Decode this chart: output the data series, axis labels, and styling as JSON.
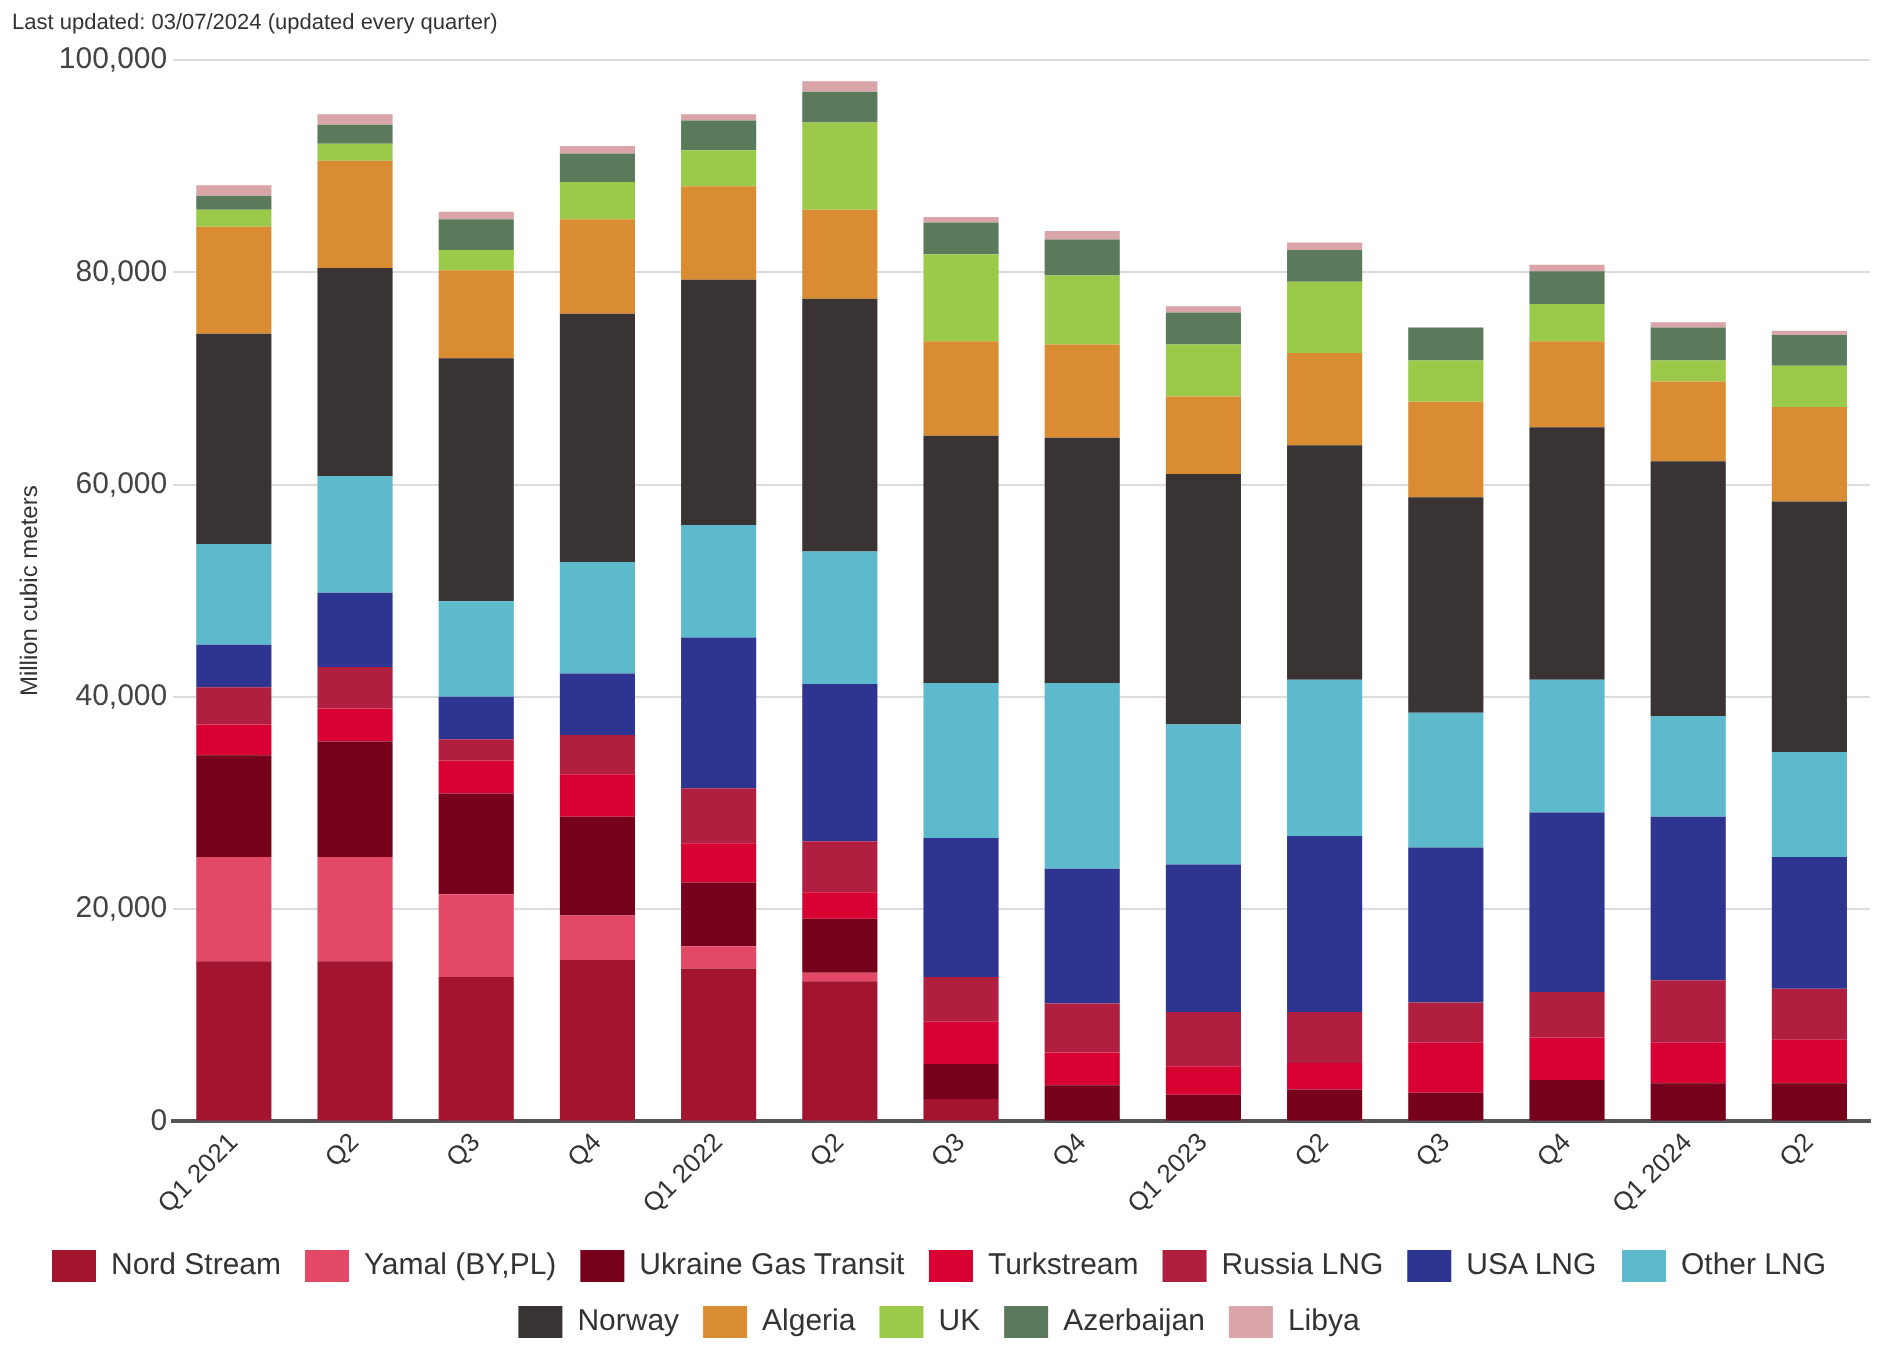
{
  "chart_data": {
    "type": "bar",
    "stacked": true,
    "ylabel": "Million cubic meters",
    "annotations": [
      "Last updated: 03/07/2024 (updated every quarter)"
    ],
    "categories": [
      "Q1 2021",
      "Q2",
      "Q3",
      "Q4",
      "Q1 2022",
      "Q2",
      "Q3",
      "Q4",
      "Q1 2023",
      "Q2",
      "Q3",
      "Q4",
      "Q1 2024",
      "Q2"
    ],
    "ylim": [
      0,
      100000
    ],
    "yticks": [
      0,
      {
        "value": 20000,
        "label": "20,000"
      },
      {
        "value": 40000,
        "label": "40,000"
      },
      {
        "value": 60000,
        "label": "60,000"
      },
      {
        "value": 80000,
        "label": "80,000"
      },
      {
        "value": 100000,
        "label": "100,000"
      }
    ],
    "grid": "y",
    "legend": "bottom",
    "series": [
      {
        "name": "Nord Stream",
        "color": "#a3152f",
        "values": [
          15100,
          15100,
          13600,
          15200,
          14400,
          13200,
          2100,
          0,
          0,
          0,
          0,
          0,
          0,
          0
        ]
      },
      {
        "name": "Yamal (BY,PL)",
        "color": "#e34866",
        "values": [
          9800,
          9800,
          7800,
          4200,
          2100,
          800,
          0,
          0,
          0,
          0,
          0,
          0,
          0,
          0
        ]
      },
      {
        "name": "Ukraine Gas Transit",
        "color": "#76001b",
        "values": [
          9600,
          10900,
          9500,
          9300,
          6000,
          5100,
          3300,
          3400,
          2500,
          3000,
          2700,
          3900,
          3600,
          3600
        ]
      },
      {
        "name": "Turkstream",
        "color": "#d80032",
        "values": [
          2900,
          3100,
          3100,
          4000,
          3700,
          2500,
          4000,
          3100,
          2700,
          2500,
          4700,
          4000,
          3800,
          4100
        ]
      },
      {
        "name": "Russia LNG",
        "color": "#b01e40",
        "values": [
          3500,
          3900,
          2000,
          3700,
          5200,
          4800,
          4200,
          4600,
          5100,
          4800,
          3800,
          4300,
          5900,
          4800
        ]
      },
      {
        "name": "USA LNG",
        "color": "#2e3590",
        "values": [
          4000,
          7000,
          4000,
          5800,
          14200,
          14800,
          13100,
          12700,
          13900,
          16600,
          14600,
          16900,
          15400,
          12400
        ]
      },
      {
        "name": "Other LNG",
        "color": "#5dbacd",
        "values": [
          9500,
          11000,
          9000,
          10500,
          10600,
          12500,
          14600,
          17500,
          13200,
          14700,
          12700,
          12500,
          9500,
          9900
        ]
      },
      {
        "name": "Norway",
        "color": "#393333",
        "values": [
          19800,
          19600,
          22900,
          23400,
          23100,
          23800,
          23300,
          23100,
          23600,
          22100,
          20300,
          23800,
          24000,
          23600
        ]
      },
      {
        "name": "Algeria",
        "color": "#da8c32",
        "values": [
          10100,
          10100,
          8300,
          8900,
          8800,
          8400,
          8900,
          8800,
          7300,
          8700,
          9000,
          8100,
          7500,
          8900
        ]
      },
      {
        "name": "UK",
        "color": "#9bca4a",
        "values": [
          1600,
          1600,
          1900,
          3500,
          3400,
          8200,
          8200,
          6500,
          4900,
          6700,
          3900,
          3500,
          2000,
          3900
        ]
      },
      {
        "name": "Azerbaijan",
        "color": "#5b7a5c",
        "values": [
          1300,
          1800,
          2900,
          2700,
          2800,
          2900,
          3000,
          3400,
          3000,
          3000,
          3100,
          3100,
          3100,
          2900
        ]
      },
      {
        "name": "Libya",
        "color": "#d9a5a8",
        "values": [
          1000,
          1000,
          700,
          700,
          600,
          1000,
          500,
          800,
          600,
          700,
          null,
          600,
          500,
          400
        ]
      }
    ]
  }
}
